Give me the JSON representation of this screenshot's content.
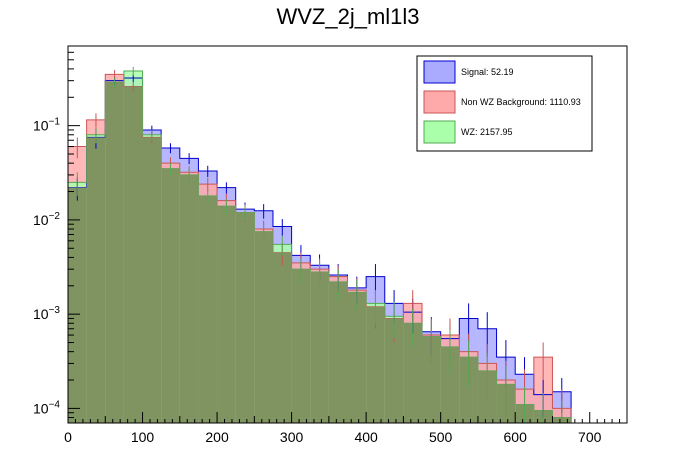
{
  "chart_data": {
    "type": "bar",
    "title": "WVZ_2j_ml1l3",
    "xlabel": "",
    "ylabel": "",
    "xlim": [
      0,
      750
    ],
    "ylim": [
      7e-05,
      0.7
    ],
    "yscale": "log",
    "bin_width": 25,
    "bin_edges_start": 0,
    "x_ticks": [
      0,
      100,
      200,
      300,
      400,
      500,
      600,
      700
    ],
    "x_tick_labels": [
      "0",
      "100",
      "200",
      "300",
      "400",
      "500",
      "600",
      "700"
    ],
    "y_ticks": [
      0.0001,
      0.001,
      0.01,
      0.1
    ],
    "y_tick_labels": [
      {
        "base": "10",
        "exp": "−4"
      },
      {
        "base": "10",
        "exp": "−3"
      },
      {
        "base": "10",
        "exp": "−2"
      },
      {
        "base": "10",
        "exp": "−1"
      }
    ],
    "grid": false,
    "legend_position": "top-right",
    "series": [
      {
        "name": "Signal: 52.19",
        "fill": "#aaaaff",
        "line": "#0000cc",
        "values": [
          0.022,
          0.075,
          0.3,
          0.32,
          0.09,
          0.058,
          0.045,
          0.033,
          0.022,
          0.013,
          0.0125,
          0.0085,
          0.0042,
          0.0033,
          0.0026,
          0.0019,
          0.0025,
          0.0013,
          0.00105,
          0.00065,
          0.00055,
          0.0009,
          0.0007,
          0.00035,
          0.00023,
          0.00014,
          0.00015
        ],
        "errors": [
          0.006,
          0.018,
          0.03,
          0.03,
          0.01,
          0.007,
          0.006,
          0.0045,
          0.003,
          0.0023,
          0.0022,
          0.0017,
          0.0012,
          0.001,
          0.0008,
          0.0006,
          0.0009,
          0.0005,
          0.00042,
          0.00028,
          0.00025,
          0.0004,
          0.00035,
          0.00018,
          0.00012,
          6e-05,
          6e-05
        ]
      },
      {
        "name": "Non WZ Background: 1110.93",
        "fill": "#ffaaaa",
        "line": "#cc5555",
        "values": [
          0.06,
          0.115,
          0.35,
          0.26,
          0.075,
          0.04,
          0.032,
          0.024,
          0.016,
          0.012,
          0.008,
          0.0045,
          0.0035,
          0.003,
          0.0025,
          0.0018,
          0.0012,
          0.0009,
          0.0013,
          0.0006,
          0.0006,
          0.0004,
          0.0003,
          0.0002,
          0.00016,
          0.00035,
          0.0001
        ],
        "errors": [
          0.015,
          0.02,
          0.04,
          0.03,
          0.01,
          0.006,
          0.005,
          0.004,
          0.003,
          0.0025,
          0.0018,
          0.0012,
          0.001,
          0.0009,
          0.0008,
          0.0006,
          0.0005,
          0.0004,
          0.0005,
          0.0003,
          0.0003,
          0.00022,
          0.00018,
          0.00012,
          0.0001,
          0.00015,
          6e-05
        ]
      },
      {
        "name": "WZ: 2157.95",
        "fill": "#aaffaa",
        "line": "#55aa55",
        "values": [
          0.025,
          0.08,
          0.29,
          0.38,
          0.08,
          0.035,
          0.03,
          0.018,
          0.014,
          0.012,
          0.0075,
          0.0055,
          0.003,
          0.0028,
          0.0022,
          0.0017,
          0.0013,
          0.00095,
          0.0008,
          0.00058,
          0.00045,
          0.00035,
          0.00025,
          0.00018,
          0.00011,
          9.5e-05,
          8e-05
        ],
        "errors": [
          0.007,
          0.015,
          0.035,
          0.04,
          0.01,
          0.005,
          0.005,
          0.003,
          0.0025,
          0.0022,
          0.0016,
          0.0013,
          0.0009,
          0.0009,
          0.0008,
          0.0006,
          0.0005,
          0.0004,
          0.00035,
          0.00028,
          0.00022,
          0.00018,
          0.00014,
          0.0001,
          6e-05,
          5e-05,
          4e-05
        ]
      }
    ]
  },
  "colors": {
    "overlap": "#7f9460",
    "axis": "#000000",
    "background": "#ffffff"
  }
}
